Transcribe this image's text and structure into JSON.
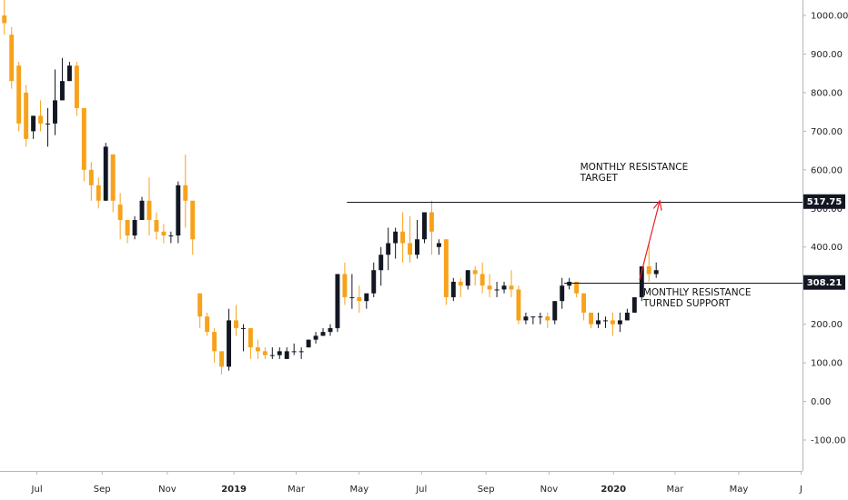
{
  "chart_data": {
    "type": "candlestick",
    "colors": {
      "up": "#131722",
      "down": "#f7a21b",
      "level_line": "#131722",
      "arrow": "#e8202a",
      "axis_text": "#222222"
    },
    "y_axis": {
      "ticks": [
        "1000.00",
        "900.00",
        "800.00",
        "700.00",
        "600.00",
        "500.00",
        "400.00",
        "300.00",
        "200.00",
        "100.00",
        "0.00",
        "-100.00"
      ],
      "tick_values": [
        1000,
        900,
        800,
        700,
        600,
        500,
        400,
        300,
        200,
        100,
        0,
        -100
      ],
      "ylim": [
        -180,
        1040
      ]
    },
    "x_axis": {
      "labels": [
        {
          "text": "Jul",
          "index": 4.5,
          "bold": false
        },
        {
          "text": "Sep",
          "index": 13.5,
          "bold": false
        },
        {
          "text": "Nov",
          "index": 22.5,
          "bold": false
        },
        {
          "text": "2019",
          "index": 31.7,
          "bold": true
        },
        {
          "text": "Mar",
          "index": 40.3,
          "bold": false
        },
        {
          "text": "May",
          "index": 49,
          "bold": false
        },
        {
          "text": "Jul",
          "index": 57.6,
          "bold": false
        },
        {
          "text": "Sep",
          "index": 66.5,
          "bold": false
        },
        {
          "text": "Nov",
          "index": 75.2,
          "bold": false
        },
        {
          "text": "2020",
          "index": 84.1,
          "bold": true
        },
        {
          "text": "Mar",
          "index": 92.6,
          "bold": false
        },
        {
          "text": "May",
          "index": 101.4,
          "bold": false
        },
        {
          "text": "J",
          "index": 110,
          "bold": false
        }
      ],
      "xlim": [
        -0.6,
        110.2
      ]
    },
    "candles": [
      [
        1000,
        1050,
        980,
        950
      ],
      [
        950,
        970,
        830,
        810
      ],
      [
        870,
        880,
        720,
        700
      ],
      [
        800,
        820,
        680,
        660
      ],
      [
        700,
        740,
        740,
        680
      ],
      [
        740,
        780,
        720,
        700
      ],
      [
        720,
        760,
        720,
        660
      ],
      [
        720,
        860,
        780,
        690
      ],
      [
        780,
        890,
        830,
        780
      ],
      [
        830,
        880,
        870,
        840
      ],
      [
        870,
        880,
        760,
        740
      ],
      [
        760,
        760,
        600,
        570
      ],
      [
        600,
        620,
        560,
        520
      ],
      [
        560,
        580,
        520,
        500
      ],
      [
        520,
        670,
        660,
        520
      ],
      [
        640,
        640,
        520,
        490
      ],
      [
        510,
        540,
        470,
        420
      ],
      [
        470,
        470,
        430,
        410
      ],
      [
        430,
        480,
        470,
        420
      ],
      [
        470,
        530,
        520,
        470
      ],
      [
        520,
        580,
        470,
        430
      ],
      [
        470,
        490,
        440,
        420
      ],
      [
        440,
        460,
        430,
        410
      ],
      [
        430,
        440,
        430,
        410
      ],
      [
        430,
        570,
        560,
        410
      ],
      [
        560,
        640,
        520,
        450
      ],
      [
        520,
        520,
        420,
        380
      ],
      [
        280,
        280,
        220,
        190
      ],
      [
        220,
        230,
        180,
        170
      ],
      [
        180,
        190,
        130,
        100
      ],
      [
        130,
        130,
        90,
        70
      ],
      [
        90,
        240,
        210,
        80
      ],
      [
        210,
        250,
        190,
        170
      ],
      [
        190,
        200,
        190,
        130
      ],
      [
        190,
        190,
        140,
        110
      ],
      [
        140,
        160,
        130,
        110
      ],
      [
        130,
        140,
        120,
        110
      ],
      [
        120,
        140,
        120,
        110
      ],
      [
        120,
        140,
        130,
        110
      ],
      [
        110,
        140,
        130,
        110
      ],
      [
        130,
        150,
        130,
        120
      ],
      [
        130,
        140,
        130,
        110
      ],
      [
        140,
        160,
        160,
        140
      ],
      [
        160,
        180,
        170,
        150
      ],
      [
        170,
        190,
        180,
        170
      ],
      [
        180,
        200,
        190,
        170
      ],
      [
        190,
        270,
        330,
        180
      ],
      [
        330,
        360,
        270,
        250
      ],
      [
        270,
        330,
        270,
        240
      ],
      [
        270,
        300,
        260,
        230
      ],
      [
        260,
        280,
        280,
        240
      ],
      [
        280,
        360,
        340,
        270
      ],
      [
        340,
        400,
        380,
        300
      ],
      [
        380,
        450,
        410,
        340
      ],
      [
        410,
        450,
        440,
        370
      ],
      [
        440,
        490,
        410,
        360
      ],
      [
        410,
        480,
        380,
        360
      ],
      [
        380,
        470,
        420,
        370
      ],
      [
        420,
        490,
        490,
        410
      ],
      [
        490,
        520,
        440,
        380
      ],
      [
        400,
        420,
        410,
        380
      ],
      [
        420,
        400,
        270,
        250
      ],
      [
        270,
        320,
        310,
        260
      ],
      [
        310,
        320,
        300,
        270
      ],
      [
        300,
        340,
        340,
        290
      ],
      [
        340,
        350,
        330,
        300
      ],
      [
        330,
        360,
        300,
        280
      ],
      [
        300,
        330,
        290,
        270
      ],
      [
        290,
        310,
        290,
        270
      ],
      [
        290,
        310,
        300,
        280
      ],
      [
        300,
        340,
        290,
        270
      ],
      [
        290,
        300,
        210,
        200
      ],
      [
        210,
        230,
        220,
        200
      ],
      [
        220,
        220,
        220,
        200
      ],
      [
        220,
        230,
        220,
        200
      ],
      [
        220,
        230,
        210,
        190
      ],
      [
        210,
        250,
        260,
        200
      ],
      [
        260,
        320,
        300,
        240
      ],
      [
        300,
        320,
        310,
        290
      ],
      [
        310,
        310,
        280,
        270
      ],
      [
        280,
        270,
        230,
        210
      ],
      [
        230,
        220,
        200,
        190
      ],
      [
        200,
        230,
        210,
        190
      ],
      [
        210,
        220,
        210,
        190
      ],
      [
        210,
        230,
        200,
        170
      ],
      [
        200,
        230,
        210,
        180
      ],
      [
        210,
        240,
        230,
        210
      ],
      [
        230,
        250,
        270,
        230
      ],
      [
        270,
        330,
        350,
        260
      ],
      [
        350,
        410,
        330,
        310
      ],
      [
        330,
        360,
        340,
        320
      ]
    ],
    "levels": [
      {
        "value": 517.75,
        "label": "517.75",
        "start_index": 47.3
      },
      {
        "value": 308.21,
        "label": "308.21",
        "start_index": 77.3
      }
    ],
    "annotations": [
      {
        "text": [
          "MONTHLY RESISTANCE",
          "TARGET"
        ],
        "index": 79.5,
        "value": 600
      },
      {
        "text": [
          "MONTHLY RESISTANCE",
          "TURNED SUPPORT"
        ],
        "index": 88.2,
        "value": 275
      }
    ],
    "arrow": {
      "from": [
        87.7,
        315
      ],
      "to": [
        90.5,
        520
      ]
    }
  }
}
